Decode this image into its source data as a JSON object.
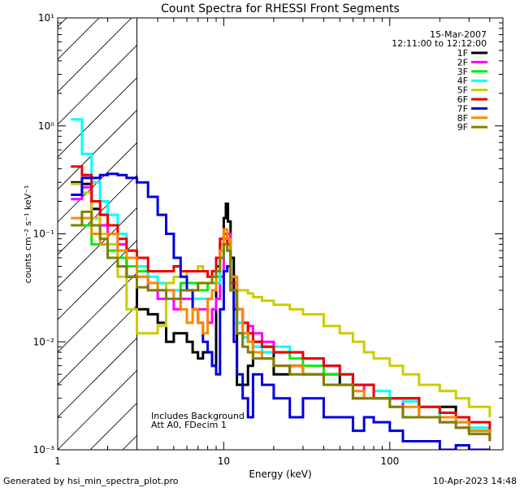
{
  "chart_data": {
    "type": "line",
    "title": "Count Spectra for RHESSI Front Segments",
    "date": "15-Mar-2007",
    "time_range": "12:11:00 to 12:12:00",
    "xlabel": "Energy (keV)",
    "ylabel": "counts cm⁻² s⁻¹ keV⁻¹",
    "xscale": "log",
    "yscale": "log",
    "xlim": [
      1,
      480
    ],
    "ylim": [
      0.001,
      10
    ],
    "x_ticks": [
      {
        "value": 1,
        "label": "1"
      },
      {
        "value": 10,
        "label": "10"
      },
      {
        "value": 100,
        "label": "100"
      }
    ],
    "y_ticks": [
      {
        "value": 0.001,
        "label": "10⁻³"
      },
      {
        "value": 0.01,
        "label": "10⁻²"
      },
      {
        "value": 0.1,
        "label": "10⁻¹"
      },
      {
        "value": 1,
        "label": "10⁰"
      },
      {
        "value": 10,
        "label": "10¹"
      }
    ],
    "hatched_region_x": [
      1,
      3
    ],
    "annotations": [
      "Includes Background",
      "Att A0, FDecim 1"
    ],
    "footer_left": "Generated by hsi_min_spectra_plot.pro",
    "footer_right": "10-Apr-2023 14:48",
    "legend_position": "top-right",
    "series": [
      {
        "name": "1F",
        "color": "#000000",
        "x": [
          1.2,
          1.4,
          1.6,
          1.8,
          2.0,
          2.3,
          2.6,
          3.0,
          3.5,
          4.0,
          4.5,
          5.0,
          5.5,
          6.0,
          6.5,
          7.0,
          7.5,
          8.0,
          8.5,
          9.0,
          9.5,
          10.0,
          10.3,
          10.6,
          11.0,
          11.5,
          12.0,
          13,
          14,
          15,
          17,
          20,
          25,
          30,
          40,
          50,
          60,
          70,
          80,
          100,
          120,
          150,
          200,
          250,
          300,
          400
        ],
        "y": [
          0.3,
          0.29,
          0.17,
          0.15,
          0.1,
          0.06,
          0.04,
          0.02,
          0.018,
          0.015,
          0.01,
          0.012,
          0.012,
          0.01,
          0.008,
          0.007,
          0.008,
          0.008,
          0.006,
          0.05,
          0.08,
          0.14,
          0.19,
          0.13,
          0.06,
          0.02,
          0.004,
          0.004,
          0.006,
          0.01,
          0.009,
          0.005,
          0.006,
          0.005,
          0.005,
          0.004,
          0.003,
          0.004,
          0.003,
          0.003,
          0.003,
          0.002,
          0.0025,
          0.002,
          0.0015,
          0.0015
        ]
      },
      {
        "name": "2F",
        "color": "#ff00ff",
        "x": [
          1.2,
          1.4,
          1.6,
          1.8,
          2.0,
          2.3,
          2.6,
          3.0,
          3.5,
          4.0,
          4.5,
          5.0,
          5.5,
          6.0,
          6.5,
          7.0,
          7.5,
          8.0,
          8.5,
          9.0,
          9.5,
          10.0,
          10.5,
          11.0,
          12,
          13,
          14,
          15,
          17,
          20,
          25,
          30,
          40,
          50,
          60,
          70,
          80,
          100,
          120,
          150,
          200,
          250,
          300,
          400
        ],
        "y": [
          0.21,
          0.27,
          0.14,
          0.12,
          0.1,
          0.08,
          0.07,
          0.04,
          0.03,
          0.025,
          0.03,
          0.02,
          0.025,
          0.025,
          0.02,
          0.02,
          0.02,
          0.015,
          0.02,
          0.025,
          0.04,
          0.08,
          0.1,
          0.04,
          0.02,
          0.012,
          0.014,
          0.012,
          0.01,
          0.008,
          0.008,
          0.007,
          0.006,
          0.005,
          0.004,
          0.003,
          0.003,
          0.003,
          0.002,
          0.002,
          0.0018,
          0.0016,
          0.0015,
          0.0012
        ]
      },
      {
        "name": "3F",
        "color": "#00ee00",
        "x": [
          1.2,
          1.4,
          1.6,
          1.8,
          2.0,
          2.3,
          2.6,
          3.0,
          3.5,
          4.0,
          4.5,
          5.0,
          5.5,
          6.0,
          6.5,
          7.0,
          7.5,
          8.0,
          8.5,
          9.0,
          9.5,
          10.0,
          10.5,
          11.0,
          12,
          13,
          14,
          15,
          17,
          20,
          25,
          30,
          40,
          50,
          60,
          70,
          80,
          100,
          120,
          150,
          200,
          250,
          300,
          400
        ],
        "y": [
          0.12,
          0.12,
          0.08,
          0.08,
          0.07,
          0.06,
          0.05,
          0.045,
          0.035,
          0.03,
          0.03,
          0.03,
          0.035,
          0.035,
          0.035,
          0.03,
          0.03,
          0.035,
          0.035,
          0.04,
          0.06,
          0.09,
          0.08,
          0.03,
          0.015,
          0.012,
          0.01,
          0.009,
          0.008,
          0.008,
          0.007,
          0.006,
          0.005,
          0.005,
          0.004,
          0.004,
          0.003,
          0.003,
          0.003,
          0.0025,
          0.002,
          0.0018,
          0.0015,
          0.0015
        ]
      },
      {
        "name": "4F",
        "color": "#00ffff",
        "x": [
          1.2,
          1.4,
          1.6,
          1.8,
          2.0,
          2.3,
          2.6,
          3.0,
          3.5,
          4.0,
          4.5,
          5.0,
          5.5,
          6.0,
          6.5,
          7.0,
          7.5,
          8.0,
          8.5,
          9.0,
          9.5,
          10.0,
          10.5,
          11.0,
          12,
          13,
          14,
          15,
          17,
          20,
          25,
          30,
          40,
          50,
          60,
          70,
          80,
          100,
          120,
          150,
          200,
          250,
          300,
          400
        ],
        "y": [
          1.15,
          0.55,
          0.3,
          0.2,
          0.15,
          0.1,
          0.07,
          0.05,
          0.04,
          0.035,
          0.03,
          0.03,
          0.03,
          0.03,
          0.025,
          0.025,
          0.025,
          0.025,
          0.03,
          0.035,
          0.06,
          0.08,
          0.07,
          0.03,
          0.015,
          0.011,
          0.01,
          0.009,
          0.008,
          0.009,
          0.008,
          0.007,
          0.006,
          0.005,
          0.004,
          0.004,
          0.0035,
          0.003,
          0.0028,
          0.0025,
          0.002,
          0.0018,
          0.0016,
          0.0014
        ]
      },
      {
        "name": "5F",
        "color": "#cccc00",
        "x": [
          1.2,
          1.4,
          1.6,
          1.8,
          2.0,
          2.3,
          2.6,
          3.0,
          3.5,
          4.0,
          4.5,
          5.0,
          5.5,
          6.0,
          6.5,
          7.0,
          7.5,
          8.0,
          8.5,
          9.0,
          9.5,
          10.0,
          10.5,
          11.0,
          12,
          13,
          14,
          15,
          17,
          20,
          25,
          30,
          40,
          50,
          60,
          70,
          80,
          100,
          120,
          150,
          200,
          250,
          300,
          400
        ],
        "y": [
          0.29,
          0.24,
          0.14,
          0.1,
          0.08,
          0.04,
          0.02,
          0.012,
          0.012,
          0.014,
          0.035,
          0.04,
          0.04,
          0.045,
          0.045,
          0.05,
          0.045,
          0.04,
          0.045,
          0.06,
          0.08,
          0.1,
          0.07,
          0.04,
          0.03,
          0.03,
          0.028,
          0.026,
          0.024,
          0.022,
          0.02,
          0.018,
          0.014,
          0.012,
          0.01,
          0.008,
          0.007,
          0.006,
          0.005,
          0.004,
          0.0035,
          0.003,
          0.0025,
          0.002
        ]
      },
      {
        "name": "6F",
        "color": "#ee0000",
        "x": [
          1.2,
          1.4,
          1.6,
          1.8,
          2.0,
          2.3,
          2.6,
          3.0,
          3.5,
          4.0,
          4.5,
          5.0,
          5.5,
          6.0,
          6.5,
          7.0,
          7.5,
          8.0,
          8.5,
          9.0,
          9.5,
          10.0,
          10.5,
          11.0,
          12,
          13,
          14,
          15,
          17,
          20,
          25,
          30,
          40,
          50,
          60,
          70,
          80,
          100,
          120,
          150,
          200,
          250,
          300,
          400
        ],
        "y": [
          0.42,
          0.35,
          0.2,
          0.15,
          0.12,
          0.09,
          0.07,
          0.06,
          0.045,
          0.045,
          0.045,
          0.05,
          0.045,
          0.045,
          0.045,
          0.045,
          0.045,
          0.04,
          0.045,
          0.06,
          0.09,
          0.1,
          0.08,
          0.035,
          0.02,
          0.015,
          0.012,
          0.01,
          0.009,
          0.008,
          0.008,
          0.007,
          0.006,
          0.005,
          0.004,
          0.004,
          0.003,
          0.003,
          0.003,
          0.0025,
          0.0022,
          0.002,
          0.0018,
          0.0015
        ]
      },
      {
        "name": "7F",
        "color": "#0000dd",
        "x": [
          1.2,
          1.4,
          1.6,
          1.8,
          2.0,
          2.3,
          2.6,
          3.0,
          3.5,
          4.0,
          4.5,
          5.0,
          5.5,
          6.0,
          6.5,
          7.0,
          7.5,
          8.0,
          8.5,
          9.0,
          9.5,
          10.0,
          10.5,
          11.0,
          11.5,
          12,
          13,
          14,
          15,
          17,
          20,
          25,
          30,
          40,
          50,
          60,
          70,
          80,
          100,
          120,
          150,
          200,
          250,
          300,
          400
        ],
        "y": [
          0.23,
          0.33,
          0.33,
          0.35,
          0.36,
          0.35,
          0.33,
          0.3,
          0.22,
          0.15,
          0.1,
          0.06,
          0.04,
          0.03,
          0.02,
          0.015,
          0.01,
          0.008,
          0.006,
          0.005,
          0.02,
          0.045,
          0.05,
          0.03,
          0.01,
          0.005,
          0.003,
          0.002,
          0.005,
          0.004,
          0.003,
          0.002,
          0.003,
          0.002,
          0.002,
          0.0015,
          0.002,
          0.0018,
          0.0015,
          0.0012,
          0.0012,
          0.001,
          0.0011,
          0.001,
          0.001
        ]
      },
      {
        "name": "8F",
        "color": "#ff8800",
        "x": [
          1.2,
          1.4,
          1.6,
          1.8,
          2.0,
          2.3,
          2.6,
          3.0,
          3.5,
          4.0,
          4.5,
          5.0,
          5.5,
          6.0,
          6.5,
          7.0,
          7.5,
          8.0,
          8.5,
          9.0,
          9.5,
          10.0,
          10.5,
          11.0,
          12,
          13,
          14,
          15,
          17,
          20,
          25,
          30,
          40,
          50,
          60,
          70,
          80,
          100,
          120,
          150,
          200,
          250,
          300,
          400
        ],
        "y": [
          0.14,
          0.14,
          0.1,
          0.08,
          0.1,
          0.07,
          0.06,
          0.04,
          0.035,
          0.03,
          0.03,
          0.025,
          0.02,
          0.015,
          0.02,
          0.015,
          0.012,
          0.025,
          0.03,
          0.045,
          0.07,
          0.11,
          0.09,
          0.04,
          0.02,
          0.012,
          0.01,
          0.008,
          0.007,
          0.006,
          0.006,
          0.005,
          0.004,
          0.004,
          0.0035,
          0.003,
          0.003,
          0.0025,
          0.0025,
          0.002,
          0.002,
          0.0018,
          0.0015,
          0.0013
        ]
      },
      {
        "name": "9F",
        "color": "#808000",
        "x": [
          1.2,
          1.4,
          1.6,
          1.8,
          2.0,
          2.3,
          2.6,
          3.0,
          3.5,
          4.0,
          4.5,
          5.0,
          5.5,
          6.0,
          6.5,
          7.0,
          7.5,
          8.0,
          8.5,
          9.0,
          9.5,
          10.0,
          10.5,
          11.0,
          12,
          13,
          14,
          15,
          17,
          20,
          25,
          30,
          40,
          50,
          60,
          70,
          80,
          100,
          120,
          150,
          200,
          250,
          300,
          400
        ],
        "y": [
          0.12,
          0.16,
          0.12,
          0.09,
          0.06,
          0.05,
          0.04,
          0.032,
          0.03,
          0.03,
          0.025,
          0.025,
          0.03,
          0.03,
          0.03,
          0.035,
          0.035,
          0.035,
          0.04,
          0.045,
          0.06,
          0.08,
          0.07,
          0.03,
          0.012,
          0.009,
          0.008,
          0.007,
          0.007,
          0.006,
          0.005,
          0.005,
          0.004,
          0.004,
          0.003,
          0.003,
          0.003,
          0.0025,
          0.002,
          0.002,
          0.0018,
          0.0016,
          0.0014,
          0.0012
        ]
      }
    ]
  }
}
